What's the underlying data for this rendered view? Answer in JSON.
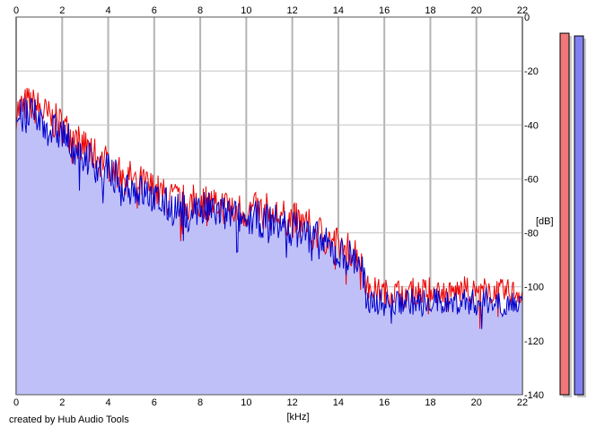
{
  "chart_data": {
    "type": "area",
    "xlabel": "[kHz]",
    "ylabel": "[dB]",
    "xlim": [
      0,
      22
    ],
    "ylim": [
      -140,
      0
    ],
    "x_ticks": [
      0,
      2,
      4,
      6,
      8,
      10,
      12,
      14,
      16,
      18,
      20,
      22
    ],
    "y_ticks": [
      0,
      -20,
      -40,
      -60,
      -80,
      -100,
      -120,
      -140
    ],
    "x_tick_labels": [
      "0",
      "2",
      "4",
      "6",
      "8",
      "10",
      "12",
      "14",
      "16",
      "18",
      "20",
      "22"
    ],
    "y_tick_labels": [
      "0",
      "-20",
      "-40",
      "-60",
      "-80",
      "-100",
      "-120",
      "-140"
    ],
    "grid": true,
    "series": [
      {
        "color": "#ee0000",
        "x": [
          0,
          0.5,
          1,
          1.5,
          2,
          2.5,
          3,
          3.5,
          4,
          4.5,
          5,
          5.5,
          6,
          6.5,
          7,
          7.5,
          8,
          8.5,
          9,
          9.5,
          10,
          10.5,
          11,
          11.5,
          12,
          12.5,
          13,
          13.5,
          14,
          14.5,
          15,
          15.2,
          15.5,
          16,
          16.5,
          17,
          17.5,
          18,
          18.5,
          19,
          19.5,
          20,
          20.5,
          21,
          21.5,
          22
        ],
        "values": [
          -35,
          -32,
          -34,
          -38,
          -40,
          -45,
          -48,
          -52,
          -54,
          -58,
          -60,
          -62,
          -64,
          -67,
          -68,
          -69,
          -68,
          -69,
          -70,
          -71,
          -72,
          -72,
          -72,
          -74,
          -75,
          -77,
          -79,
          -82,
          -85,
          -86,
          -88,
          -100,
          -101,
          -102,
          -102,
          -101,
          -102,
          -101,
          -102,
          -102,
          -101,
          -102,
          -101,
          -102,
          -102,
          -102
        ]
      },
      {
        "color": "#0000cc",
        "x": [
          0,
          0.5,
          1,
          1.5,
          2,
          2.5,
          3,
          3.5,
          4,
          4.5,
          5,
          5.5,
          6,
          6.5,
          7,
          7.5,
          8,
          8.5,
          9,
          9.5,
          10,
          10.5,
          11,
          11.5,
          12,
          12.5,
          13,
          13.5,
          14,
          14.5,
          15,
          15.2,
          15.5,
          16,
          16.5,
          17,
          17.5,
          18,
          18.5,
          19,
          19.5,
          20,
          20.5,
          21,
          21.5,
          22
        ],
        "values": [
          -38,
          -36,
          -38,
          -42,
          -43,
          -48,
          -51,
          -55,
          -57,
          -61,
          -63,
          -65,
          -67,
          -70,
          -71,
          -72,
          -71,
          -72,
          -73,
          -74,
          -75,
          -75,
          -75,
          -77,
          -78,
          -80,
          -82,
          -85,
          -88,
          -89,
          -91,
          -104,
          -105,
          -106,
          -106,
          -105,
          -106,
          -105,
          -106,
          -106,
          -105,
          -106,
          -105,
          -106,
          -106,
          -106
        ]
      }
    ],
    "level_meters": [
      {
        "channel": "left",
        "color": "#f07878",
        "level_db": -6
      },
      {
        "channel": "right",
        "color": "#8080f0",
        "level_db": -7
      }
    ]
  },
  "footer": {
    "credit": "created by Hub Audio Tools"
  }
}
